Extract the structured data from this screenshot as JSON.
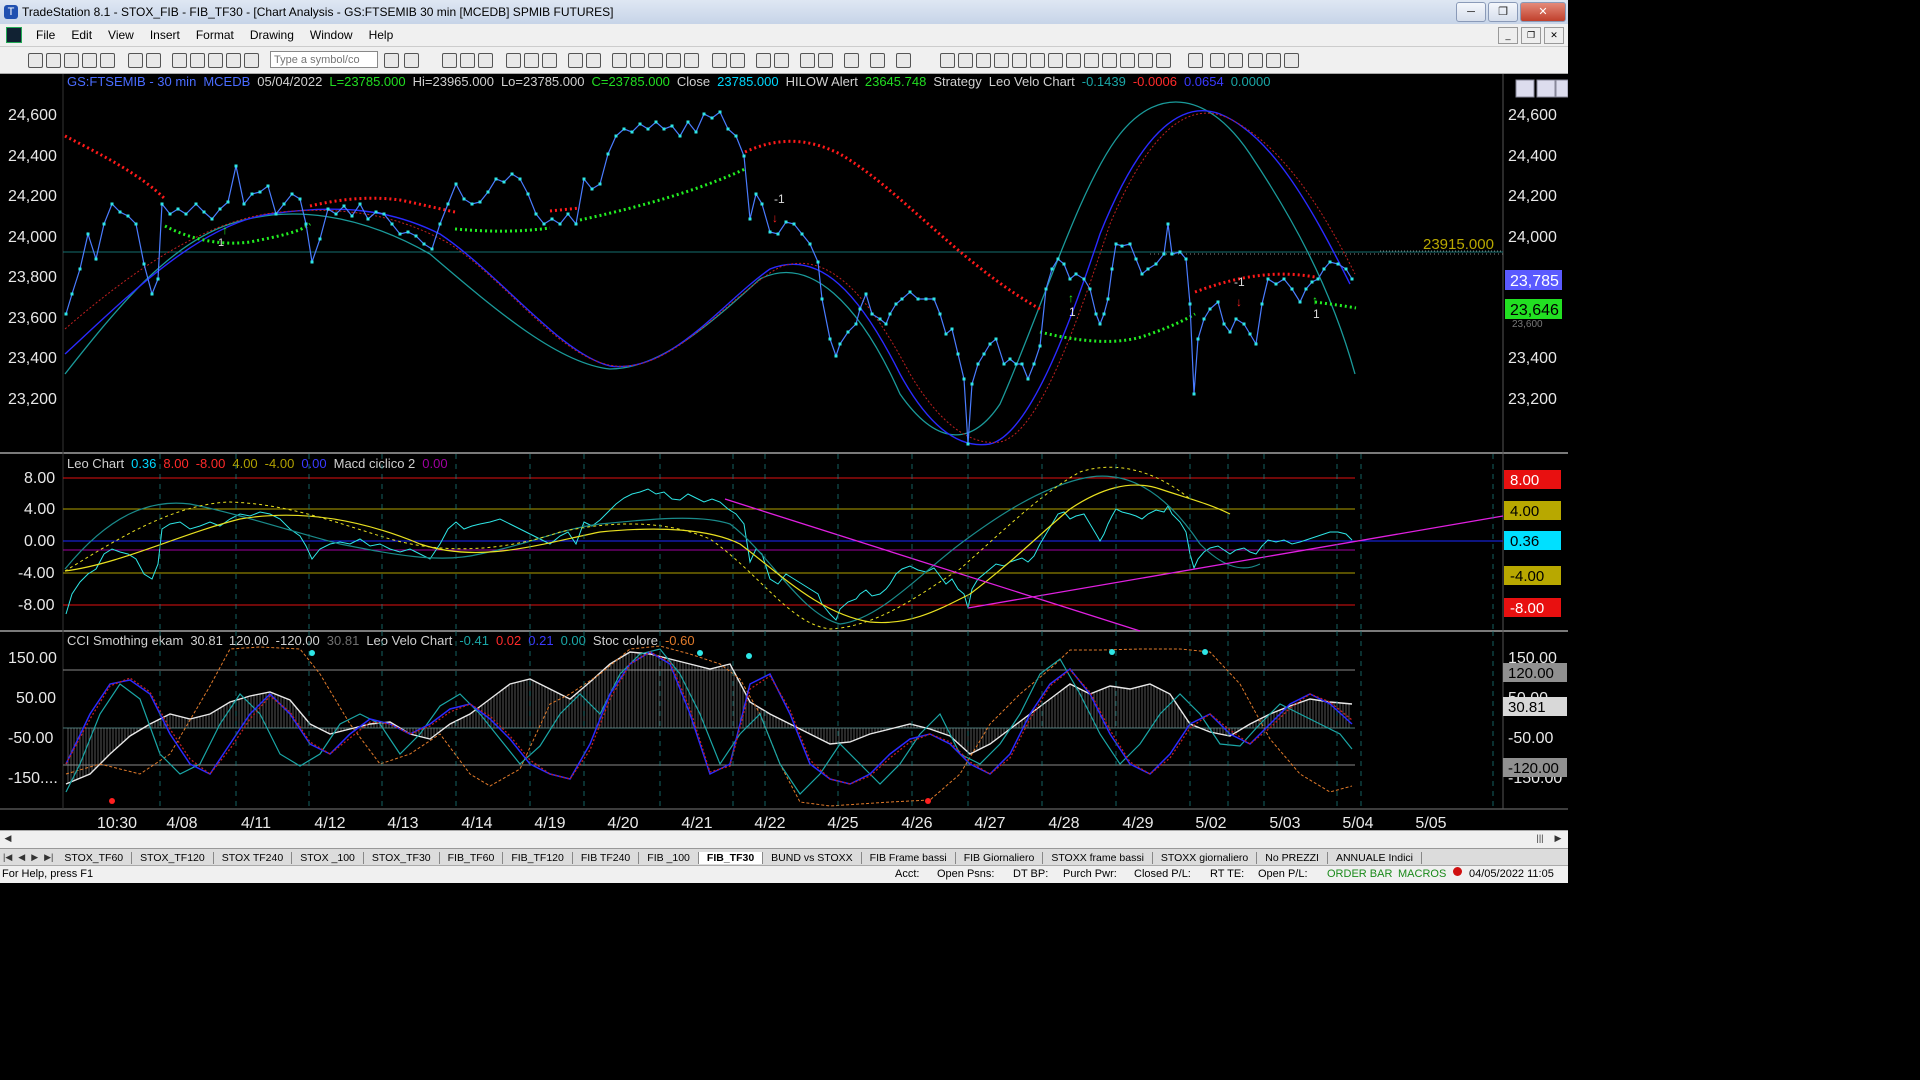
{
  "window": {
    "title": "TradeStation 8.1 - STOX_FIB - FIB_TF30 - [Chart Analysis - GS:FTSEMIB  30 min  [MCEDB] SPMIB FUTURES]"
  },
  "menu": [
    "File",
    "Edit",
    "View",
    "Insert",
    "Format",
    "Drawing",
    "Window",
    "Help"
  ],
  "toolbar": {
    "symbol_placeholder": "Type a symbol/co"
  },
  "chart": {
    "header": [
      {
        "text": "GS:FTSEMIB - 30 min",
        "color": "#4a6cff"
      },
      {
        "text": "MCEDB",
        "color": "#4a6cff"
      },
      {
        "text": "05/04/2022",
        "color": "#d0d0d0"
      },
      {
        "text": "L=23785.000",
        "color": "#22dd22"
      },
      {
        "text": "Hi=23965.000",
        "color": "#d0d0d0"
      },
      {
        "text": "Lo=23785.000",
        "color": "#d0d0d0"
      },
      {
        "text": "C=23785.000",
        "color": "#22dd22"
      },
      {
        "text": "Close",
        "color": "#d0d0d0"
      },
      {
        "text": "23785.000",
        "color": "#00d8ff"
      },
      {
        "text": "HILOW Alert",
        "color": "#d0d0d0"
      },
      {
        "text": "23645.748",
        "color": "#22dd22"
      },
      {
        "text": "Strategy",
        "color": "#d0d0d0"
      },
      {
        "text": "Leo Velo Chart",
        "color": "#d0d0d0"
      },
      {
        "text": "-0.1439",
        "color": "#1aa6a6"
      },
      {
        "text": "-0.0006",
        "color": "#ff2a2a"
      },
      {
        "text": "0.0654",
        "color": "#3a3aff"
      },
      {
        "text": "0.0000",
        "color": "#1aa6a6"
      }
    ],
    "price_axis": [
      "24,600",
      "24,400",
      "24,200",
      "24,000",
      "23,800",
      "23,600",
      "23,400",
      "23,200"
    ],
    "ref_label": "23915.000",
    "last_price": "23,785",
    "hilow_price": "23,646",
    "hilow_hidden_label": "23,600",
    "signal_labels": [
      {
        "text": "-1",
        "kind": "sell"
      },
      {
        "text": "1",
        "kind": "buy"
      },
      {
        "text": "-1",
        "kind": "sell"
      },
      {
        "text": "1",
        "kind": "buy"
      },
      {
        "text": "1",
        "kind": "buy"
      }
    ],
    "x_axis": [
      "10:30",
      "4/08",
      "4/11",
      "4/12",
      "4/13",
      "4/14",
      "4/19",
      "4/20",
      "4/21",
      "4/22",
      "4/25",
      "4/26",
      "4/27",
      "4/28",
      "4/29",
      "5/02",
      "5/03",
      "5/04",
      "5/05"
    ]
  },
  "panel2": {
    "header": [
      {
        "text": "Leo Chart",
        "color": "#d0d0d0"
      },
      {
        "text": "0.36",
        "color": "#00d8ff"
      },
      {
        "text": "8.00",
        "color": "#ff2a2a"
      },
      {
        "text": "-8.00",
        "color": "#ff2a2a"
      },
      {
        "text": "4.00",
        "color": "#b0a000"
      },
      {
        "text": "-4.00",
        "color": "#b0a000"
      },
      {
        "text": "0.00",
        "color": "#3a3aff"
      },
      {
        "text": "Macd ciclico 2",
        "color": "#d0d0d0"
      },
      {
        "text": "0.00",
        "color": "#a000a0"
      }
    ],
    "axis": [
      "8.00",
      "4.00",
      "0.00",
      "-4.00",
      "-8.00"
    ],
    "badges": [
      {
        "text": "8.00",
        "bg": "#e81010",
        "fg": "#ffffff"
      },
      {
        "text": "4.00",
        "bg": "#b8a800",
        "fg": "#000000"
      },
      {
        "text": "0.36",
        "bg": "#00e0ff",
        "fg": "#000000"
      },
      {
        "text": "-4.00",
        "bg": "#b8a800",
        "fg": "#000000"
      },
      {
        "text": "-8.00",
        "bg": "#e81010",
        "fg": "#ffffff"
      }
    ]
  },
  "panel3": {
    "header": [
      {
        "text": "CCI Smothing ekam",
        "color": "#d0d0d0"
      },
      {
        "text": "30.81",
        "color": "#d0d0d0"
      },
      {
        "text": "120.00",
        "color": "#d0d0d0"
      },
      {
        "text": "-120.00",
        "color": "#d0d0d0"
      },
      {
        "text": "30.81",
        "color": "#707070"
      },
      {
        "text": "Leo Velo Chart",
        "color": "#d0d0d0"
      },
      {
        "text": "-0.41",
        "color": "#1aa6a6"
      },
      {
        "text": "0.02",
        "color": "#ff2a2a"
      },
      {
        "text": "0.21",
        "color": "#3a3aff"
      },
      {
        "text": "0.00",
        "color": "#1aa6a6"
      },
      {
        "text": "Stoc colore",
        "color": "#d0d0d0"
      },
      {
        "text": "-0.60",
        "color": "#e07a2a"
      }
    ],
    "axis": [
      "150.00",
      "50.00",
      "-50.00",
      "-150...."
    ],
    "right_axis": [
      "150.00",
      "50.00",
      "-50.00",
      "-150.00"
    ],
    "badges": [
      {
        "text": "120.00",
        "bg": "#909090",
        "fg": "#000000"
      },
      {
        "text": "30.81",
        "bg": "#d8d8d8",
        "fg": "#000000"
      },
      {
        "text": "-120.00",
        "bg": "#909090",
        "fg": "#000000"
      }
    ]
  },
  "tabs": [
    "STOX_TF60",
    "STOX_TF120",
    "STOX TF240",
    "STOX _100",
    "STOX_TF30",
    "FIB_TF60",
    "FIB_TF120",
    "FIB TF240",
    "FIB _100",
    "FIB_TF30",
    "BUND vs STOXX",
    "FIB Frame bassi",
    "FIB Giornaliero",
    "STOXX frame bassi",
    "STOXX giornaliero",
    "No PREZZI",
    "ANNUALE Indici"
  ],
  "active_tab": "FIB_TF30",
  "status": {
    "help": "For Help, press F1",
    "acct": "Acct:",
    "open_psns": "Open Psns:",
    "dt_bp": "DT BP:",
    "purch_pwr": "Purch Pwr:",
    "closed_pl": "Closed P/L:",
    "rt_te": "RT TE:",
    "open_pl": "Open P/L:",
    "order_bar": "ORDER BAR",
    "macros": "MACROS",
    "datetime": "04/05/2022 11:05"
  },
  "colors": {
    "background": "#000000",
    "price": "#2ee6e6",
    "hilow_up": "#22ee22",
    "hilow_down": "#ff1a1a",
    "ma_blue": "#2a2aff",
    "ma_teal": "#1aa6a6",
    "trendline": "#e020e0"
  }
}
